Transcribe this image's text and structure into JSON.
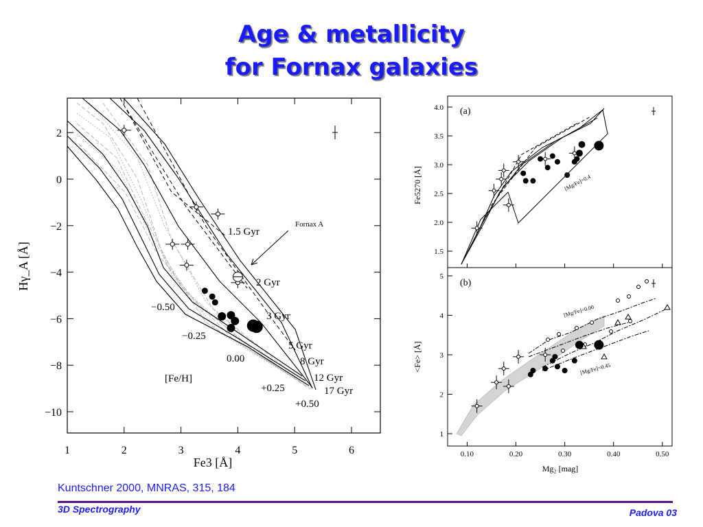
{
  "slide": {
    "title_line1": "Age & metallicity",
    "title_line2": "for Fornax galaxies",
    "citation": "Kuntschner 2000, MNRAS, 315, 184",
    "footer_left": "3D Spectrography",
    "footer_right": "Padova 03",
    "colors": {
      "title": "#1a1aff",
      "footer_rule": "#5c0f8b"
    }
  },
  "chart_data": [
    {
      "type": "scatter",
      "title": "",
      "xlabel": "Fe3 [Å]",
      "ylabel": "Hγ_A [Å]",
      "xlim": [
        1,
        6.5
      ],
      "ylim": [
        -11,
        3.5
      ],
      "x_ticks": [
        "1",
        "2",
        "3",
        "4",
        "5",
        "6"
      ],
      "y_ticks": [
        "2",
        "0",
        "−2",
        "−4",
        "−6",
        "−8",
        "−10"
      ],
      "age_labels": [
        "1.5 Gyr",
        "2 Gyr",
        "3 Gyr",
        "5 Gyr",
        "8 Gyr",
        "12 Gyr",
        "17 Gyr"
      ],
      "metallicity_labels": [
        "−0.50",
        "−0.25",
        "0.00",
        "+0.25",
        "+0.50"
      ],
      "grid_label": "[Fe/H]",
      "annotation": "Fornax A",
      "points": [
        {
          "x": 3.42,
          "y": -4.8,
          "size": "small"
        },
        {
          "x": 3.55,
          "y": -5.05,
          "size": "small"
        },
        {
          "x": 3.6,
          "y": -5.3,
          "size": "small"
        },
        {
          "x": 3.72,
          "y": -5.9,
          "size": "medium"
        },
        {
          "x": 3.88,
          "y": -5.85,
          "size": "medium"
        },
        {
          "x": 3.95,
          "y": -6.1,
          "size": "medium"
        },
        {
          "x": 3.88,
          "y": -6.4,
          "size": "medium"
        },
        {
          "x": 4.27,
          "y": -6.3,
          "size": "large"
        },
        {
          "x": 4.33,
          "y": -6.35,
          "size": "large"
        }
      ],
      "open_points": [
        {
          "x": 2.0,
          "y": 2.1
        },
        {
          "x": 3.27,
          "y": -1.2
        },
        {
          "x": 3.65,
          "y": -1.5
        },
        {
          "x": 2.85,
          "y": -2.8
        },
        {
          "x": 3.12,
          "y": -2.8
        },
        {
          "x": 3.1,
          "y": -3.7
        },
        {
          "x": 4.0,
          "y": -4.45
        }
      ],
      "fornax_a": {
        "x": 4.0,
        "y": -4.2
      }
    },
    {
      "type": "scatter",
      "title": "",
      "panel_label": "(a)",
      "xlabel": "",
      "ylabel": "Fe5270 [Å]",
      "xlim": [
        0.06,
        0.52
      ],
      "ylim": [
        1.2,
        4.1
      ],
      "y_ticks": [
        "4.0",
        "3.5",
        "3.0",
        "2.5",
        "2.0",
        "1.5"
      ],
      "annotation": "[Mg/Fe]=0.4",
      "points": [
        {
          "x": 0.215,
          "y": 2.85
        },
        {
          "x": 0.22,
          "y": 2.72
        },
        {
          "x": 0.235,
          "y": 2.72
        },
        {
          "x": 0.25,
          "y": 3.1
        },
        {
          "x": 0.265,
          "y": 2.95
        },
        {
          "x": 0.275,
          "y": 3.15
        },
        {
          "x": 0.285,
          "y": 3.05
        },
        {
          "x": 0.305,
          "y": 2.82
        },
        {
          "x": 0.32,
          "y": 3.05
        },
        {
          "x": 0.325,
          "y": 3.1
        },
        {
          "x": 0.33,
          "y": 3.2
        },
        {
          "x": 0.335,
          "y": 3.35
        },
        {
          "x": 0.37,
          "y": 3.33
        }
      ]
    },
    {
      "type": "scatter",
      "title": "",
      "panel_label": "(b)",
      "xlabel": "Mg₂ [mag]",
      "ylabel": "<Fe> [Å]",
      "xlim": [
        0.06,
        0.52
      ],
      "ylim": [
        0.9,
        5.1
      ],
      "x_ticks": [
        "0.10",
        "0.20",
        "0.30",
        "0.40",
        "0.50"
      ],
      "y_ticks": [
        "5",
        "4",
        "3",
        "2",
        "1"
      ],
      "annotations": [
        "[Mg/Fe]=0.00",
        "[Mg/Fe]=0.45"
      ],
      "points": [
        {
          "x": 0.23,
          "y": 2.5
        },
        {
          "x": 0.235,
          "y": 2.6
        },
        {
          "x": 0.26,
          "y": 2.65
        },
        {
          "x": 0.275,
          "y": 2.85
        },
        {
          "x": 0.28,
          "y": 2.95
        },
        {
          "x": 0.285,
          "y": 2.7
        },
        {
          "x": 0.3,
          "y": 2.6
        },
        {
          "x": 0.32,
          "y": 2.85
        },
        {
          "x": 0.33,
          "y": 3.25
        },
        {
          "x": 0.37,
          "y": 3.25
        }
      ]
    }
  ]
}
